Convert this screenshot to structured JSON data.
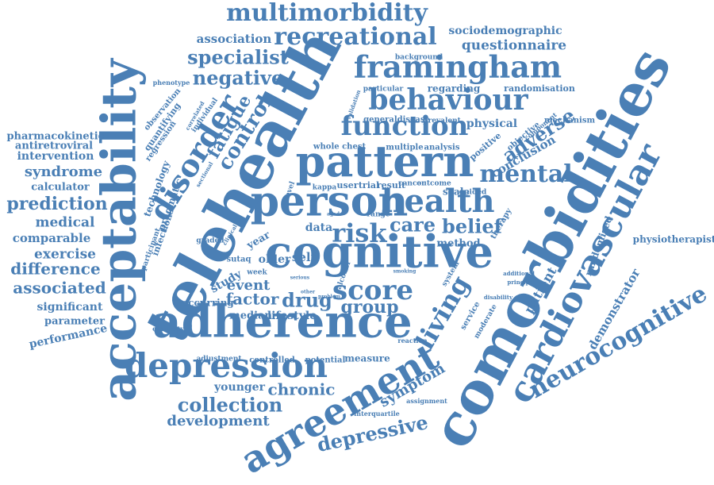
{
  "color": "#4a7fb5",
  "words": [
    {
      "text": "multimorbidity"
    },
    {
      "text": "recreational"
    },
    {
      "text": "framingham"
    },
    {
      "text": "behaviour"
    },
    {
      "text": "association"
    },
    {
      "text": "sociodemographic"
    },
    {
      "text": "questionnaire"
    },
    {
      "text": "specialist"
    },
    {
      "text": "negative"
    },
    {
      "text": "function"
    },
    {
      "text": "pattern"
    },
    {
      "text": "person"
    },
    {
      "text": "health"
    },
    {
      "text": "mental"
    },
    {
      "text": "adverse"
    },
    {
      "text": "cognitive"
    },
    {
      "text": "telehealth"
    },
    {
      "text": "acceptability"
    },
    {
      "text": "comorbidities"
    },
    {
      "text": "cardiovascular"
    },
    {
      "text": "neurocognitive"
    },
    {
      "text": "adherence"
    },
    {
      "text": "depression"
    },
    {
      "text": "agreement"
    },
    {
      "text": "depressive"
    },
    {
      "text": "collection"
    },
    {
      "text": "development"
    },
    {
      "text": "chronic"
    },
    {
      "text": "younger"
    },
    {
      "text": "score"
    },
    {
      "text": "group"
    },
    {
      "text": "drug"
    },
    {
      "text": "factor"
    },
    {
      "text": "event"
    },
    {
      "text": "lifestyle"
    },
    {
      "text": "median"
    },
    {
      "text": "living"
    },
    {
      "text": "symptom"
    },
    {
      "text": "risk"
    },
    {
      "text": "care"
    },
    {
      "text": "belief"
    },
    {
      "text": "method"
    },
    {
      "text": "disorder"
    },
    {
      "text": "control"
    },
    {
      "text": "fatigue"
    },
    {
      "text": "technology"
    },
    {
      "text": "pragmatic"
    },
    {
      "text": "infection"
    },
    {
      "text": "pharmacokinetic"
    },
    {
      "text": "antiretroviral"
    },
    {
      "text": "intervention"
    },
    {
      "text": "syndrome"
    },
    {
      "text": "calculator"
    },
    {
      "text": "prediction"
    },
    {
      "text": "medical"
    },
    {
      "text": "comparable"
    },
    {
      "text": "exercise"
    },
    {
      "text": "difference"
    },
    {
      "text": "associated"
    },
    {
      "text": "significant"
    },
    {
      "text": "parameter"
    },
    {
      "text": "performance"
    },
    {
      "text": "physiotherapist"
    },
    {
      "text": "demonstrator"
    },
    {
      "text": "patient"
    },
    {
      "text": "randomised"
    },
    {
      "text": "conclusion"
    },
    {
      "text": "positive"
    },
    {
      "text": "physical"
    },
    {
      "text": "mechanism"
    },
    {
      "text": "objective"
    },
    {
      "text": "randomisation"
    },
    {
      "text": "regarding"
    },
    {
      "text": "particular"
    },
    {
      "text": "background"
    },
    {
      "text": "prevalent"
    },
    {
      "text": "generaldisease"
    },
    {
      "text": "multiple"
    },
    {
      "text": "analysis"
    },
    {
      "text": "whole chest"
    },
    {
      "text": "kappa"
    },
    {
      "text": "user"
    },
    {
      "text": "trial"
    },
    {
      "text": "result"
    },
    {
      "text": "cancer"
    },
    {
      "text": "outcome"
    },
    {
      "text": "scale"
    },
    {
      "text": "guided"
    },
    {
      "text": "data"
    },
    {
      "text": "self"
    },
    {
      "text": "older"
    },
    {
      "text": "year"
    },
    {
      "text": "study"
    },
    {
      "text": "occurring"
    },
    {
      "text": "measure"
    },
    {
      "text": "potential"
    },
    {
      "text": "controlled"
    },
    {
      "text": "adjustment"
    },
    {
      "text": "reaction"
    },
    {
      "text": "moderate"
    },
    {
      "text": "service"
    },
    {
      "text": "system"
    },
    {
      "text": "disability"
    },
    {
      "text": "additional"
    },
    {
      "text": "principal"
    },
    {
      "text": "therapy"
    },
    {
      "text": "component"
    },
    {
      "text": "sutaq"
    },
    {
      "text": "week"
    },
    {
      "text": "graded"
    },
    {
      "text": "participant"
    },
    {
      "text": "quantifying"
    },
    {
      "text": "regression"
    },
    {
      "text": "observation"
    },
    {
      "text": "phenotype"
    },
    {
      "text": "individual"
    },
    {
      "text": "correlated"
    },
    {
      "text": "sectional"
    },
    {
      "text": "interquartile"
    },
    {
      "text": "assignment"
    },
    {
      "text": "ethnicity"
    },
    {
      "text": "problem"
    },
    {
      "text": "alcohol"
    },
    {
      "text": "serious"
    },
    {
      "text": "smoking"
    },
    {
      "text": "range"
    },
    {
      "text": "aged"
    },
    {
      "text": "level"
    },
    {
      "text": "validation"
    },
    {
      "text": "clinical"
    },
    {
      "text": "other"
    }
  ]
}
